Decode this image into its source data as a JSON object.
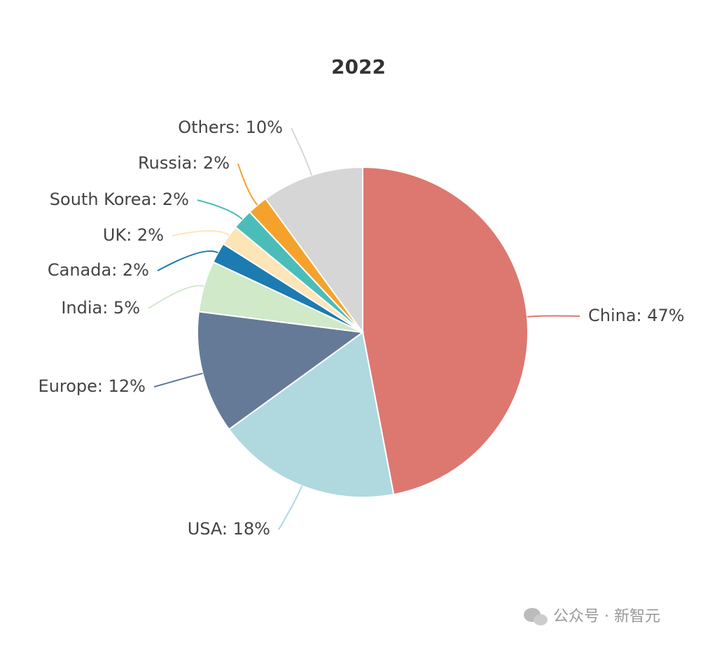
{
  "chart_data": {
    "type": "pie",
    "title": "2022",
    "values": [
      47,
      18,
      12,
      5,
      2,
      2,
      2,
      2,
      10
    ],
    "value_labels": [
      "China: 47%",
      "USA: 18%",
      "Europe: 12%",
      "India: 5%",
      "Canada: 2%",
      "UK: 2%",
      "South Korea: 2%",
      "Russia: 2%",
      "Others: 10%"
    ],
    "colors": [
      "#dc7870",
      "#b0d8df",
      "#657a97",
      "#cfe9c9",
      "#1c7bb0",
      "#fde5b8",
      "#4bbdb8",
      "#f5a22d",
      "#d6d6d6"
    ]
  },
  "watermark": "公众号 · 新智元"
}
